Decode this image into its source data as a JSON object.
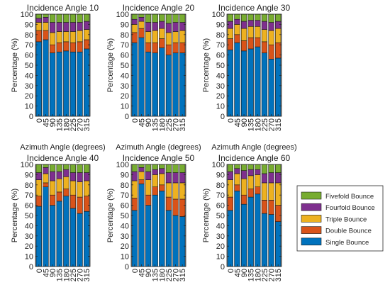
{
  "chart_data": {
    "type": "bar",
    "stacked": true,
    "categories": [
      "0",
      "45",
      "90",
      "135",
      "180",
      "225",
      "270",
      "315"
    ],
    "xlabel": "Azimuth Angle (degrees)",
    "ylabel": "Percentage (%)",
    "ylim": [
      0,
      100
    ],
    "yticks": [
      0,
      10,
      20,
      30,
      40,
      50,
      60,
      70,
      80,
      90,
      100
    ],
    "legend_position": "right",
    "legend": [
      {
        "name": "Fivefold Bounce",
        "color": "#77AC30"
      },
      {
        "name": "Fourfold Bounce",
        "color": "#7E2F8E"
      },
      {
        "name": "Triple Bounce",
        "color": "#EDB120"
      },
      {
        "name": "Double Bounce",
        "color": "#D95319"
      },
      {
        "name": "Single Bounce",
        "color": "#0072BD"
      }
    ],
    "panels": [
      {
        "title": "Incidence Angle 10",
        "series": [
          {
            "name": "Single Bounce",
            "values": [
              73,
              75,
              62,
              63,
              64,
              63,
              63,
              66
            ]
          },
          {
            "name": "Double Bounce",
            "values": [
              11,
              9,
              8,
              9,
              9,
              9,
              10,
              9
            ]
          },
          {
            "name": "Triple Bounce",
            "values": [
              8,
              8,
              12,
              11,
              10,
              11,
              11,
              10
            ]
          },
          {
            "name": "Fourfold Bounce",
            "values": [
              4,
              5,
              10,
              9,
              9,
              9,
              8,
              8
            ]
          },
          {
            "name": "Fivefold Bounce",
            "values": [
              4,
              3,
              8,
              8,
              8,
              8,
              8,
              7
            ]
          }
        ]
      },
      {
        "title": "Incidence Angle 20",
        "series": [
          {
            "name": "Single Bounce",
            "values": [
              72,
              77,
              63,
              62,
              67,
              60,
              62,
              62
            ]
          },
          {
            "name": "Double Bounce",
            "values": [
              10,
              9,
              9,
              10,
              9,
              10,
              10,
              10
            ]
          },
          {
            "name": "Triple Bounce",
            "values": [
              8,
              7,
              11,
              12,
              10,
              12,
              11,
              12
            ]
          },
          {
            "name": "Fourfold Bounce",
            "values": [
              5,
              4,
              9,
              8,
              7,
              9,
              9,
              8
            ]
          },
          {
            "name": "Fivefold Bounce",
            "values": [
              5,
              3,
              8,
              8,
              7,
              9,
              8,
              8
            ]
          }
        ]
      },
      {
        "title": "Incidence Angle 30",
        "series": [
          {
            "name": "Single Bounce",
            "values": [
              65,
              72,
              64,
              66,
              68,
              62,
              56,
              57
            ]
          },
          {
            "name": "Double Bounce",
            "values": [
              11,
              8,
              10,
              11,
              9,
              11,
              14,
              15
            ]
          },
          {
            "name": "Triple Bounce",
            "values": [
              10,
              10,
              12,
              11,
              11,
              12,
              14,
              14
            ]
          },
          {
            "name": "Fourfold Bounce",
            "values": [
              7,
              5,
              7,
              6,
              6,
              8,
              8,
              7
            ]
          },
          {
            "name": "Fivefold Bounce",
            "values": [
              7,
              5,
              7,
              6,
              6,
              7,
              8,
              7
            ]
          }
        ]
      },
      {
        "title": "Incidence Angle 40",
        "series": [
          {
            "name": "Single Bounce",
            "values": [
              59,
              78,
              60,
              64,
              69,
              57,
              52,
              54
            ]
          },
          {
            "name": "Double Bounce",
            "values": [
              10,
              4,
              10,
              9,
              7,
              13,
              16,
              15
            ]
          },
          {
            "name": "Triple Bounce",
            "values": [
              16,
              9,
              14,
              13,
              12,
              14,
              15,
              15
            ]
          },
          {
            "name": "Fourfold Bounce",
            "values": [
              7,
              6,
              9,
              7,
              7,
              8,
              9,
              8
            ]
          },
          {
            "name": "Fivefold Bounce",
            "values": [
              8,
              3,
              7,
              7,
              5,
              8,
              8,
              8
            ]
          }
        ]
      },
      {
        "title": "Incidence Angle 50",
        "series": [
          {
            "name": "Single Bounce",
            "values": [
              55,
              81,
              60,
              70,
              74,
              55,
              50,
              49
            ]
          },
          {
            "name": "Double Bounce",
            "values": [
              12,
              4,
              10,
              8,
              6,
              13,
              16,
              17
            ]
          },
          {
            "name": "Triple Bounce",
            "values": [
              17,
              8,
              15,
              12,
              11,
              14,
              16,
              16
            ]
          },
          {
            "name": "Fourfold Bounce",
            "values": [
              9,
              4,
              8,
              5,
              5,
              10,
              10,
              10
            ]
          },
          {
            "name": "Fivefold Bounce",
            "values": [
              7,
              3,
              7,
              5,
              4,
              8,
              8,
              8
            ]
          }
        ]
      },
      {
        "title": "Incidence Angle 60",
        "series": [
          {
            "name": "Single Bounce",
            "values": [
              55,
              74,
              61,
              68,
              71,
              52,
              51,
              44
            ]
          },
          {
            "name": "Double Bounce",
            "values": [
              13,
              6,
              9,
              8,
              7,
              13,
              14,
              16
            ]
          },
          {
            "name": "Triple Bounce",
            "values": [
              17,
              11,
              16,
              13,
              12,
              17,
              17,
              22
            ]
          },
          {
            "name": "Fourfold Bounce",
            "values": [
              8,
              5,
              8,
              6,
              5,
              9,
              10,
              10
            ]
          },
          {
            "name": "Fivefold Bounce",
            "values": [
              7,
              4,
              6,
              5,
              5,
              9,
              8,
              8
            ]
          }
        ]
      }
    ]
  }
}
